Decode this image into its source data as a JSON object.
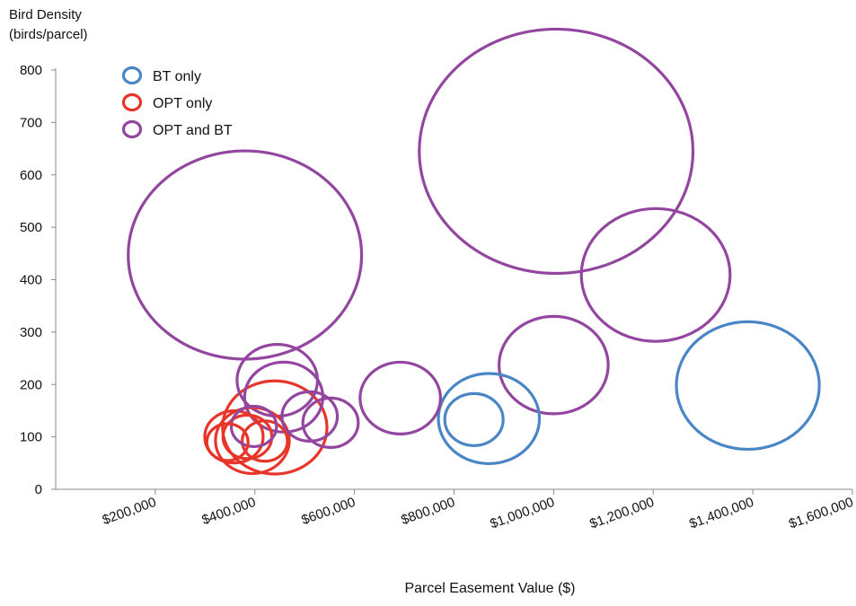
{
  "chart_data": {
    "type": "bubble",
    "title": "",
    "ylabel_lines": [
      "Bird Density",
      "(birds/parcel)"
    ],
    "xlabel": "Parcel Easement Value ($)",
    "xlim": [
      0,
      1600000
    ],
    "ylim": [
      0,
      800
    ],
    "x_ticks": [
      {
        "value": 200000,
        "label": "$200,000"
      },
      {
        "value": 400000,
        "label": "$400,000"
      },
      {
        "value": 600000,
        "label": "$600,000"
      },
      {
        "value": 800000,
        "label": "$800,000"
      },
      {
        "value": 1000000,
        "label": "$1,000,000"
      },
      {
        "value": 1200000,
        "label": "$1,200,000"
      },
      {
        "value": 1400000,
        "label": "$1,400,000"
      },
      {
        "value": 1600000,
        "label": "$1,600,000"
      }
    ],
    "y_ticks": [
      {
        "value": 0,
        "label": "0"
      },
      {
        "value": 100,
        "label": "100"
      },
      {
        "value": 200,
        "label": "200"
      },
      {
        "value": 300,
        "label": "300"
      },
      {
        "value": 400,
        "label": "400"
      },
      {
        "value": 500,
        "label": "500"
      },
      {
        "value": 600,
        "label": "600"
      },
      {
        "value": 700,
        "label": "700"
      },
      {
        "value": 800,
        "label": "800"
      }
    ],
    "grid": false,
    "legend": {
      "placement": "top-left"
    },
    "series": [
      {
        "name": "BT only",
        "color": "#4a86c5",
        "points": [
          {
            "x": 870000,
            "y": 135,
            "size": 3
          },
          {
            "x": 840000,
            "y": 133,
            "size": 1
          },
          {
            "x": 1390000,
            "y": 198,
            "size": 6
          }
        ]
      },
      {
        "name": "OPT only",
        "color": "#e8352a",
        "points": [
          {
            "x": 440000,
            "y": 118,
            "size": 3.2
          },
          {
            "x": 395000,
            "y": 93,
            "size": 1.6
          },
          {
            "x": 358000,
            "y": 100,
            "size": 1
          },
          {
            "x": 345000,
            "y": 90,
            "size": 0.5
          },
          {
            "x": 385000,
            "y": 100,
            "size": 0.7
          },
          {
            "x": 420000,
            "y": 92,
            "size": 0.6
          }
        ]
      },
      {
        "name": "OPT and BT",
        "color": "#93469f",
        "points": [
          {
            "x": 1005000,
            "y": 645,
            "size": 22
          },
          {
            "x": 380000,
            "y": 447,
            "size": 16
          },
          {
            "x": 1205000,
            "y": 409,
            "size": 6.5
          },
          {
            "x": 1000000,
            "y": 237,
            "size": 3.5
          },
          {
            "x": 445000,
            "y": 208,
            "size": 1.9
          },
          {
            "x": 458000,
            "y": 176,
            "size": 1.8
          },
          {
            "x": 692000,
            "y": 174,
            "size": 1.9
          },
          {
            "x": 510000,
            "y": 139,
            "size": 0.9
          },
          {
            "x": 552000,
            "y": 127,
            "size": 0.9
          },
          {
            "x": 398000,
            "y": 120,
            "size": 0.6
          }
        ]
      }
    ]
  }
}
